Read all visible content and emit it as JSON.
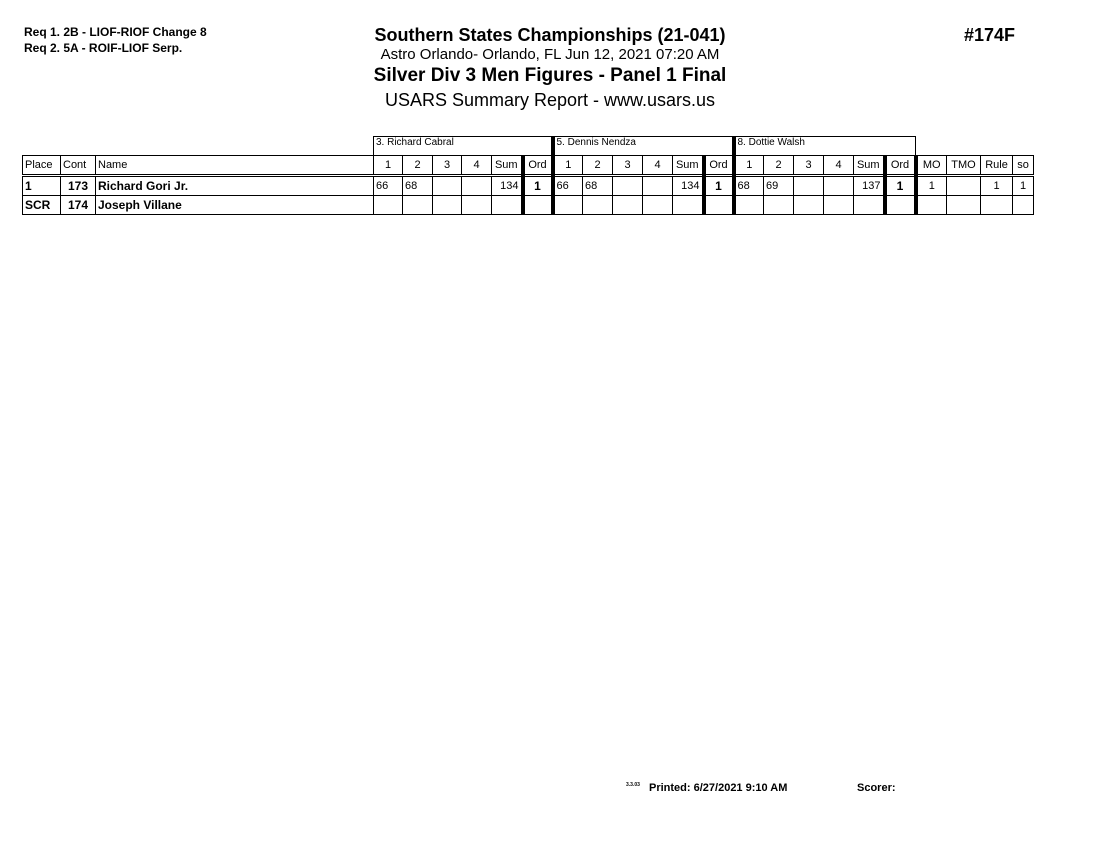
{
  "requirements": [
    "Req  1.  2B - LIOF-RIOF Change 8",
    "Req  2.  5A - ROIF-LIOF Serp."
  ],
  "event_title": "Southern States Championships (21-041)",
  "location": "Astro Orlando- Orlando, FL  Jun 12, 2021  07:20 AM",
  "division": "Silver Div 3 Men Figures - Panel 1 Final",
  "report": "USARS Summary Report - www.usars.us",
  "event_number": "#174F",
  "judges": [
    "3.  Richard Cabral",
    "5.  Dennis Nendza",
    "8.  Dottie Walsh"
  ],
  "columns": {
    "place": "Place",
    "cont": "Cont",
    "name": "Name",
    "scores": [
      "1",
      "2",
      "3",
      "4"
    ],
    "sum": "Sum",
    "ord": "Ord",
    "mo": "MO",
    "tmo": "TMO",
    "rule": "Rule",
    "so": "so"
  },
  "rows": [
    {
      "place": "1",
      "cont": "173",
      "name": "Richard Gori  Jr.",
      "judges": [
        {
          "s": [
            "66",
            "68",
            "",
            ""
          ],
          "sum": "134",
          "ord": "1"
        },
        {
          "s": [
            "66",
            "68",
            "",
            ""
          ],
          "sum": "134",
          "ord": "1"
        },
        {
          "s": [
            "68",
            "69",
            "",
            ""
          ],
          "sum": "137",
          "ord": "1"
        }
      ],
      "mo": "1",
      "tmo": "",
      "rule": "1",
      "so": "1"
    },
    {
      "place": "SCR",
      "cont": "174",
      "name": "Joseph Villane",
      "judges": [
        {
          "s": [
            "",
            "",
            "",
            ""
          ],
          "sum": "",
          "ord": ""
        },
        {
          "s": [
            "",
            "",
            "",
            ""
          ],
          "sum": "",
          "ord": ""
        },
        {
          "s": [
            "",
            "",
            "",
            ""
          ],
          "sum": "",
          "ord": ""
        }
      ],
      "mo": "",
      "tmo": "",
      "rule": "",
      "so": ""
    }
  ],
  "footer": {
    "version": "3.3.03",
    "printed": "Printed: 6/27/2021 9:10 AM",
    "scorer": "Scorer:"
  }
}
